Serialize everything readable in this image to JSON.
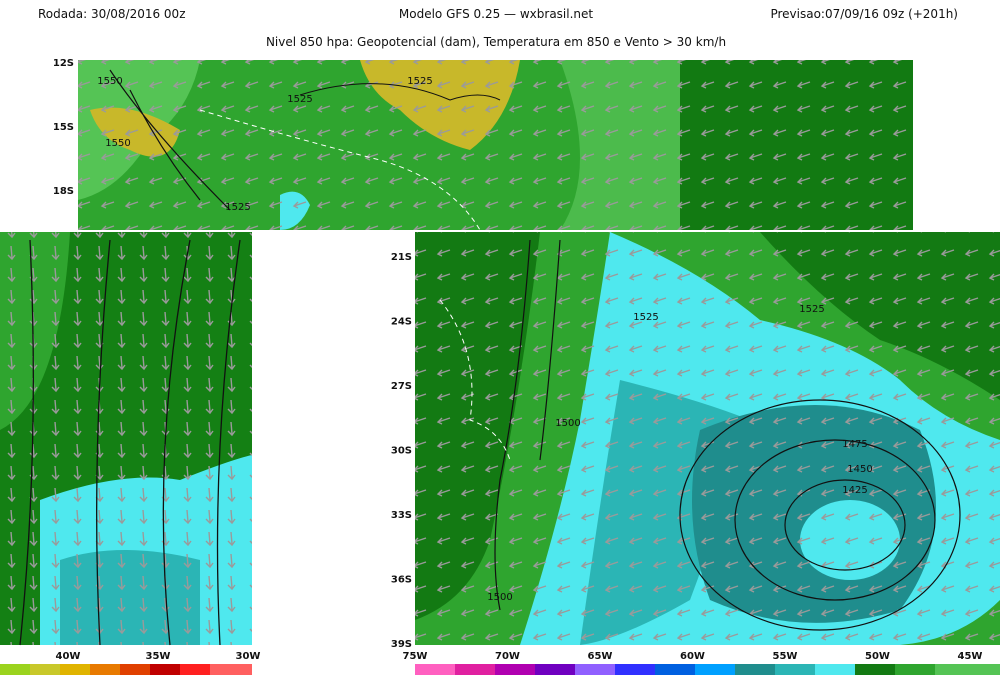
{
  "header": {
    "run": "Rodada: 30/08/2016 00z",
    "model": "Modelo GFS 0.25 — wxbrasil.net",
    "forecast": "Previsao:07/09/16 09z (+201h)",
    "subtitle": "Nivel 850 hpa: Geopotencial (dam), Temperatura em 850 e Vento > 30 km/h"
  },
  "top_panel": {
    "lat_labels": [
      "12S",
      "15S",
      "18S"
    ]
  },
  "left_panel": {
    "lon_labels": [
      "40W",
      "35W",
      "30W"
    ]
  },
  "main_panel": {
    "lat_labels": [
      "21S",
      "24S",
      "27S",
      "30S",
      "33S",
      "36S",
      "39S"
    ],
    "lon_labels": [
      "75W",
      "70W",
      "65W",
      "60W",
      "55W",
      "50W",
      "45W"
    ]
  },
  "contour_labels": [
    "1550",
    "1525",
    "1525",
    "1550",
    "1525",
    "1525",
    "1525",
    "1500",
    "1475",
    "1450",
    "1425",
    "1500"
  ]
}
